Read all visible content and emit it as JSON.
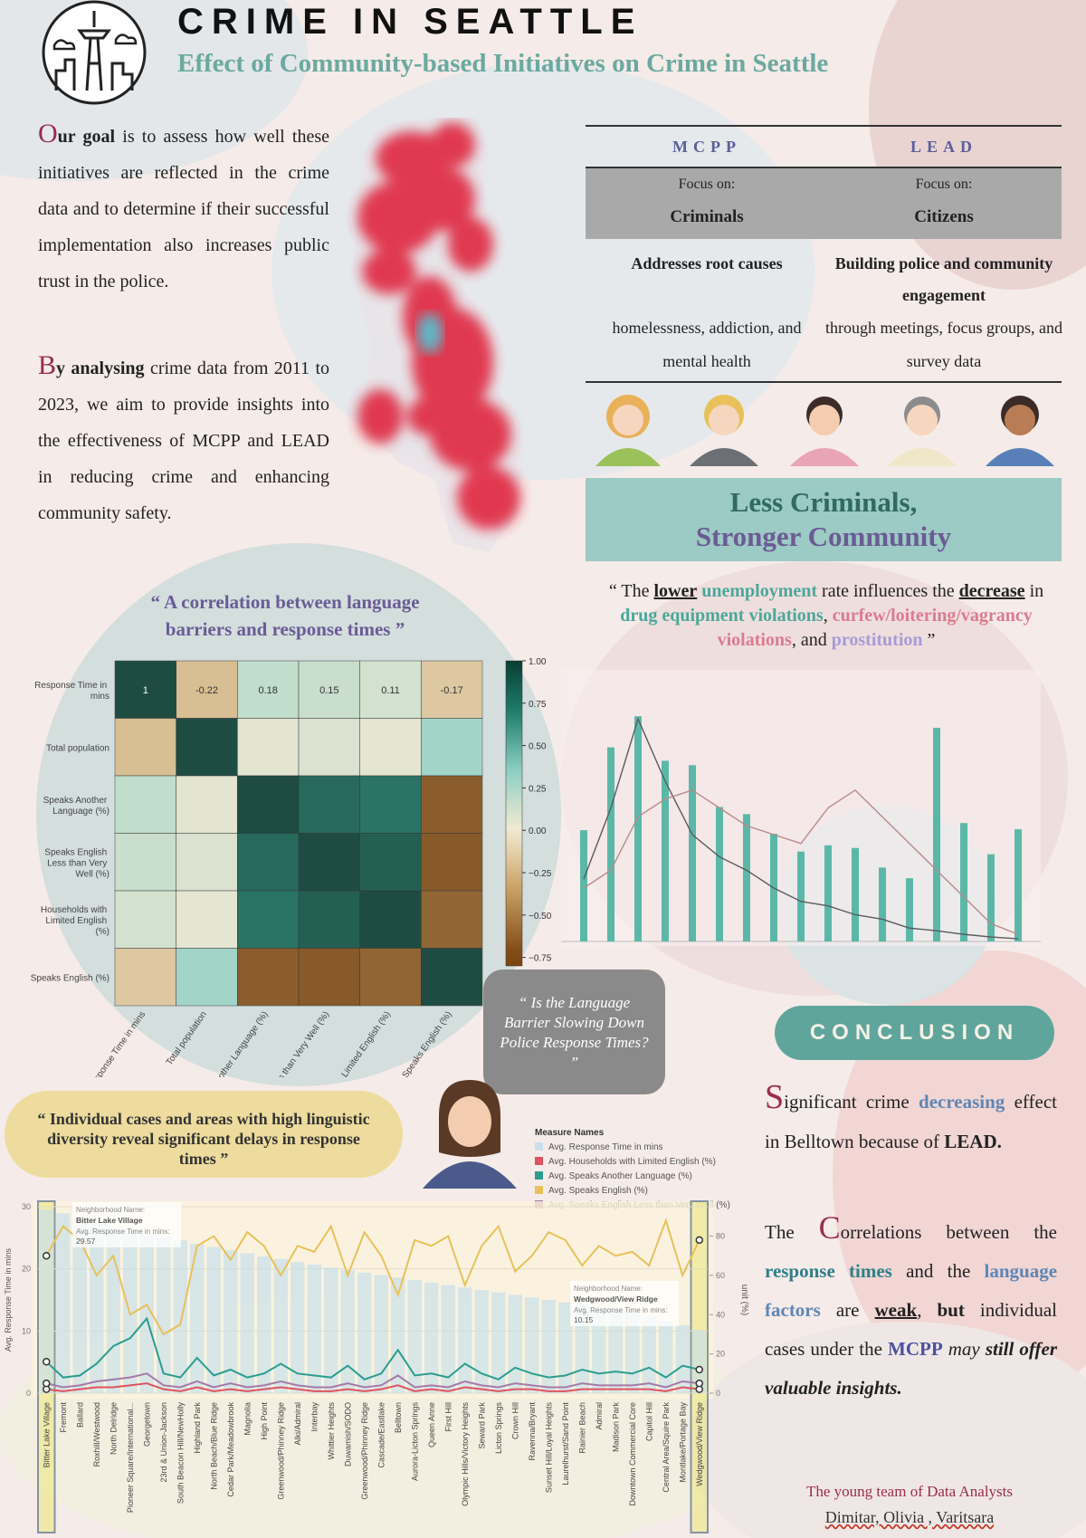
{
  "header": {
    "title": "CRIME IN SEATTLE",
    "subtitle": "Effect of Community-based Initiatives on Crime in Seattle"
  },
  "intro": {
    "p1": [
      "O",
      "ur goal",
      "is to assess how well these initiatives are reflected in the crime data and to determine if their successful implementation also increases public trust in the police."
    ],
    "p2": [
      "B",
      "y analysing",
      "crime data from 2011 to 2023, we aim to provide insights into the effectiveness of MCPP and LEAD in reducing crime and enhancing community safety."
    ]
  },
  "comparison": [
    {
      "name": "MCPP",
      "focus_label": "Focus on:",
      "focus": "Criminals",
      "point": "Addresses root causes",
      "detail": "homelessness, addiction, and mental health"
    },
    {
      "name": "LEAD",
      "focus_label": "Focus on:",
      "focus": "Citizens",
      "point": "Building police and community engagement",
      "detail": "through meetings, focus groups, and survey data"
    }
  ],
  "banner": [
    "Less Criminals,",
    "Stronger Community"
  ],
  "bubble_question": "“ Is the Language Barrier Slowing Down Police Response Times? ”",
  "bubble_cases": "“ Individual cases and areas with high linguistic diversity reveal significant delays in response times ”",
  "chart_data": [
    {
      "type": "heatmap",
      "title": "“ A correlation between language barriers and response times ”",
      "labels": [
        "Response Time in mins",
        "Total population",
        "Speaks Another Language (%)",
        "Speaks English Less than Very Well (%)",
        "Households with Limited English (%)",
        "Speaks English (%)"
      ],
      "values": [
        [
          1,
          -0.22,
          0.18,
          0.15,
          0.11,
          -0.17
        ],
        [
          -0.22,
          1,
          0.05,
          0.08,
          0.04,
          0.3
        ],
        [
          0.18,
          0.05,
          1,
          0.85,
          0.8,
          -0.7
        ],
        [
          0.15,
          0.08,
          0.85,
          1,
          0.9,
          -0.72
        ],
        [
          0.11,
          0.04,
          0.8,
          0.9,
          1,
          -0.66
        ],
        [
          -0.17,
          0.3,
          -0.7,
          -0.72,
          -0.66,
          1
        ]
      ],
      "zlim": [
        -0.8,
        1.0
      ],
      "zticks": [
        {
          "value": 1,
          "label": "1.00"
        },
        0.75,
        {
          "value": 0.5,
          "label": "0.50"
        },
        0.25,
        {
          "value": 0,
          "label": "0.00"
        },
        {
          "value": -0.25,
          "label": "−0.25"
        },
        {
          "value": -0.5,
          "label": "−0.50"
        },
        {
          "value": -0.75,
          "label": "−0.75"
        }
      ]
    },
    {
      "type": "bar_line",
      "title": [
        "“ The",
        "lower",
        "unemployment",
        "rate influences the",
        "decrease",
        "in",
        "drug equipment violations",
        ",",
        "curfew/loitering/vagrancy violations",
        ", and",
        "prostitution",
        "”"
      ],
      "bar_color": "#5bb8a8",
      "values": [
        125,
        218,
        253,
        203,
        198,
        151,
        143,
        121,
        101,
        108,
        105,
        83,
        71,
        240,
        133,
        98,
        126
      ],
      "lines": [
        {
          "color": "#5a5a5a",
          "values": [
            70,
            150,
            250,
            180,
            120,
            95,
            80,
            60,
            45,
            40,
            30,
            25,
            15,
            12,
            8,
            5,
            3
          ]
        },
        {
          "color": "#b98a8a",
          "values": [
            60,
            80,
            140,
            160,
            170,
            150,
            130,
            120,
            110,
            150,
            170,
            140,
            110,
            80,
            50,
            20,
            8
          ]
        }
      ],
      "ylim": [
        0,
        300
      ]
    },
    {
      "type": "combo",
      "legend_title": "Measure Names",
      "ylabel": "Avg. Response Time in mins",
      "y2label": "unit (%)",
      "tooltip_labels": [
        "Neighborhood Name:",
        "Avg. Response Time in mins:"
      ],
      "categories": [
        "Bitter Lake Village",
        "Fremont",
        "Ballard",
        "Roxhill/Westwood",
        "North Delridge",
        "Pioneer Square/International...",
        "Georgetown",
        "23rd & Union-Jackson",
        "South Beacon Hill/NewHolly",
        "Highland Park",
        "North Beach/Blue Ridge",
        "Cedar Park/Meadowbrook",
        "Magnolia",
        "High Point",
        "Greenwood/Phinney Ridge",
        "Alki/Admiral",
        "Interbay",
        "Whittier Heights",
        "Duwamish/SODO",
        "Greenwood/Phinney Ridge",
        "Cascade/Eastlake",
        "Belltown",
        "Aurora-Licton Springs",
        "Queen Anne",
        "First Hill",
        "Olympic Hills/Victory Heights",
        "Seward Park",
        "Licton Springs",
        "Crown Hill",
        "Ravenna/Bryant",
        "Sunset Hill/Loyal Heights",
        "Laurelhurst/Sand Point",
        "Rainier Beach",
        "Admiral",
        "Madison Park",
        "Downtown Commercial Core",
        "Capitol Hill",
        "Central Area/Squire Park",
        "Montlake/Portage Bay",
        "Wedgwood/View Ridge"
      ],
      "series": [
        {
          "name": "Avg. Response Time in mins",
          "color": "#c9dfe9",
          "kind": "bar",
          "values": [
            29.57,
            28.9,
            28.0,
            27.3,
            26.8,
            26.2,
            25.6,
            25.1,
            24.6,
            24.0,
            23.5,
            23.0,
            22.5,
            22.0,
            21.6,
            21.1,
            20.7,
            20.2,
            19.8,
            19.4,
            19.0,
            18.6,
            18.2,
            17.8,
            17.4,
            17.0,
            16.6,
            16.2,
            15.8,
            15.4,
            15.0,
            14.6,
            14.2,
            13.8,
            13.3,
            12.8,
            12.2,
            11.6,
            10.9,
            10.15
          ]
        },
        {
          "name": "Avg. Households with Limited English (%)",
          "color": "#e0525f",
          "axis": "y2",
          "values": [
            2,
            1,
            2,
            3,
            3,
            4,
            5,
            2,
            1,
            3,
            1,
            2,
            1,
            2,
            3,
            2,
            1,
            1,
            2,
            1,
            2,
            4,
            1,
            2,
            1,
            3,
            2,
            1,
            2,
            2,
            1,
            1,
            2,
            2,
            2,
            2,
            2,
            1,
            3,
            2
          ]
        },
        {
          "name": "Avg. Speaks Another Language (%)",
          "color": "#2a9d8f",
          "axis": "y2",
          "values": [
            16,
            8,
            9,
            15,
            24,
            28,
            38,
            10,
            8,
            18,
            9,
            12,
            8,
            10,
            15,
            10,
            9,
            8,
            14,
            7,
            10,
            22,
            9,
            10,
            8,
            15,
            10,
            7,
            13,
            10,
            8,
            9,
            12,
            10,
            11,
            10,
            13,
            8,
            14,
            12
          ]
        },
        {
          "name": "Avg. Speaks English (%)",
          "color": "#e8c15a",
          "axis": "y2",
          "values": [
            70,
            85,
            78,
            60,
            70,
            40,
            45,
            30,
            35,
            75,
            80,
            68,
            82,
            75,
            60,
            75,
            72,
            85,
            60,
            82,
            70,
            50,
            78,
            75,
            80,
            55,
            75,
            85,
            62,
            70,
            82,
            78,
            65,
            75,
            70,
            72,
            65,
            88,
            60,
            78
          ]
        },
        {
          "name": "Avg. Speaks English Less than Very Well (%)",
          "color": "#a57aa8",
          "axis": "y2",
          "values": [
            5,
            3,
            4,
            6,
            7,
            8,
            10,
            4,
            3,
            6,
            3,
            5,
            3,
            4,
            6,
            4,
            3,
            3,
            5,
            3,
            4,
            9,
            3,
            4,
            3,
            6,
            4,
            3,
            5,
            4,
            3,
            3,
            5,
            4,
            4,
            4,
            5,
            3,
            6,
            5
          ]
        }
      ],
      "ylim": [
        0,
        30
      ],
      "yticks": [
        0,
        10,
        20,
        30
      ],
      "y2lim": [
        0,
        95
      ],
      "y2ticks": [
        0,
        20,
        40,
        60,
        80
      ]
    }
  ],
  "conclusion": {
    "title": "CONCLUSION",
    "p1": [
      "S",
      "ignificant crime",
      "decreasing",
      "effect in Belltown because of",
      "LEAD."
    ],
    "p2": [
      "The",
      "C",
      "orrelations between the",
      "response times",
      "and the",
      "language factors",
      "are",
      "weak",
      ",",
      "but",
      "individual cases under the",
      "MCPP",
      "may",
      "still offer",
      "valuable insights."
    ]
  },
  "credits": {
    "team": "The young team of Data Analysts",
    "names": "Dimitar, Olivia , Varitsara"
  }
}
